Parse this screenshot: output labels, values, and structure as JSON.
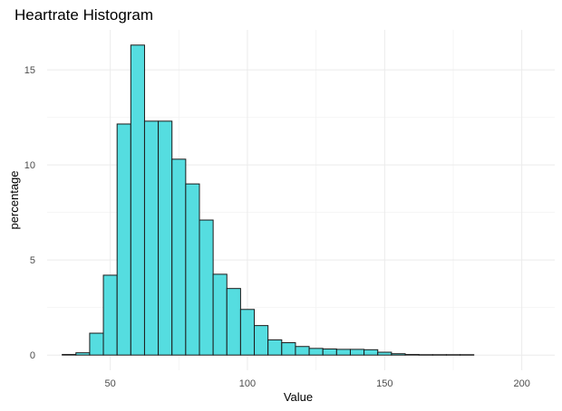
{
  "chart_data": {
    "type": "bar",
    "title": "Heartrate Histogram",
    "xlabel": "Value",
    "ylabel": "percentage",
    "bin_width": 5,
    "bins": [
      {
        "start": 32.5,
        "value": 0.03
      },
      {
        "start": 37.5,
        "value": 0.12
      },
      {
        "start": 42.5,
        "value": 1.15
      },
      {
        "start": 47.5,
        "value": 4.2
      },
      {
        "start": 52.5,
        "value": 12.15
      },
      {
        "start": 57.5,
        "value": 16.3
      },
      {
        "start": 62.5,
        "value": 12.3
      },
      {
        "start": 67.5,
        "value": 12.3
      },
      {
        "start": 72.5,
        "value": 10.3
      },
      {
        "start": 77.5,
        "value": 9.0
      },
      {
        "start": 82.5,
        "value": 7.1
      },
      {
        "start": 87.5,
        "value": 4.25
      },
      {
        "start": 92.5,
        "value": 3.5
      },
      {
        "start": 97.5,
        "value": 2.4
      },
      {
        "start": 102.5,
        "value": 1.55
      },
      {
        "start": 107.5,
        "value": 0.8
      },
      {
        "start": 112.5,
        "value": 0.65
      },
      {
        "start": 117.5,
        "value": 0.45
      },
      {
        "start": 122.5,
        "value": 0.35
      },
      {
        "start": 127.5,
        "value": 0.32
      },
      {
        "start": 132.5,
        "value": 0.3
      },
      {
        "start": 137.5,
        "value": 0.3
      },
      {
        "start": 142.5,
        "value": 0.28
      },
      {
        "start": 147.5,
        "value": 0.15
      },
      {
        "start": 152.5,
        "value": 0.07
      },
      {
        "start": 157.5,
        "value": 0.03
      },
      {
        "start": 162.5,
        "value": 0.02
      },
      {
        "start": 167.5,
        "value": 0.02
      },
      {
        "start": 172.5,
        "value": 0.02
      },
      {
        "start": 177.5,
        "value": 0.02
      }
    ],
    "xlim": [
      27,
      212
    ],
    "ylim": [
      -0.8,
      17.1
    ],
    "x_ticks": [
      50,
      100,
      150,
      200
    ],
    "y_ticks": [
      0,
      5,
      10,
      15
    ],
    "grid": true,
    "bar_color": "#55dde0",
    "bar_outline": "#1a1a1a"
  }
}
